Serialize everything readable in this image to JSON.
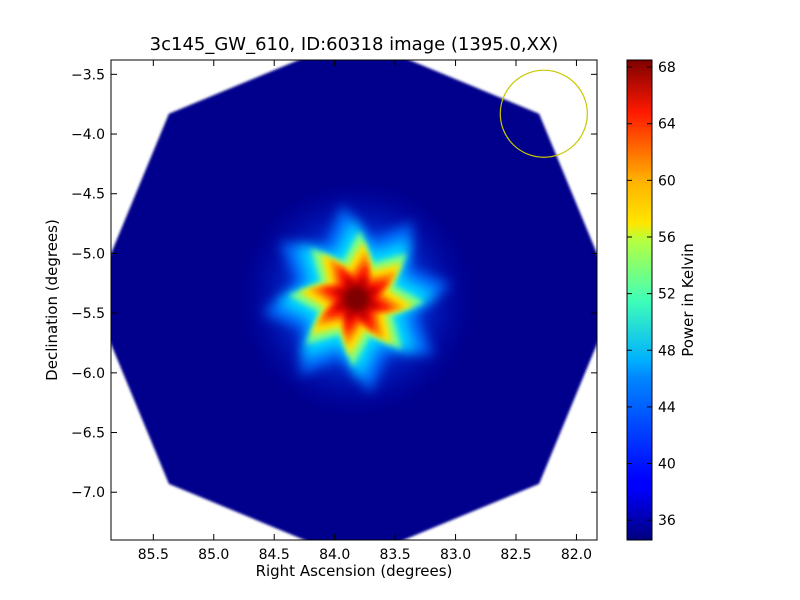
{
  "chart_data": {
    "type": "heatmap",
    "title": "3c145_GW_610, ID:60318 image (1395.0,XX)",
    "xlabel": "Right Ascension (degrees)",
    "ylabel": "Declination (degrees)",
    "xlim": [
      85.85,
      81.83
    ],
    "ylim": [
      -7.4,
      -3.38
    ],
    "xticks": [
      85.5,
      85.0,
      84.5,
      84.0,
      83.5,
      83.0,
      82.5,
      82.0
    ],
    "xtick_labels": [
      "85.5",
      "85.0",
      "84.5",
      "84.0",
      "83.5",
      "83.0",
      "82.5",
      "82.0"
    ],
    "yticks": [
      -3.5,
      -4.0,
      -4.5,
      -5.0,
      -5.5,
      -6.0,
      -6.5,
      -7.0
    ],
    "ytick_labels": [
      "−3.5",
      "−4.0",
      "−4.5",
      "−5.0",
      "−5.5",
      "−6.0",
      "−6.5",
      "−7.0"
    ],
    "colorbar": {
      "label": "Power in Kelvin",
      "colormap": "jet",
      "range": [
        34.6,
        68.5
      ],
      "ticks": [
        36,
        40,
        44,
        48,
        52,
        56,
        60,
        64,
        68
      ],
      "tick_labels": [
        "36",
        "40",
        "44",
        "48",
        "52",
        "56",
        "60",
        "64",
        "68"
      ]
    },
    "image": {
      "footprint_shape": "octagon",
      "footprint_center": [
        83.84,
        -5.38
      ],
      "footprint_half_width_deg": 2.0,
      "background_value": 35,
      "source_center": [
        83.82,
        -5.38
      ],
      "source_peak": 68,
      "source_shape": "star"
    },
    "beam_circle": {
      "center": [
        82.27,
        -3.83
      ],
      "radius_deg": 0.36,
      "color": "#c8c800"
    },
    "grid": false
  }
}
